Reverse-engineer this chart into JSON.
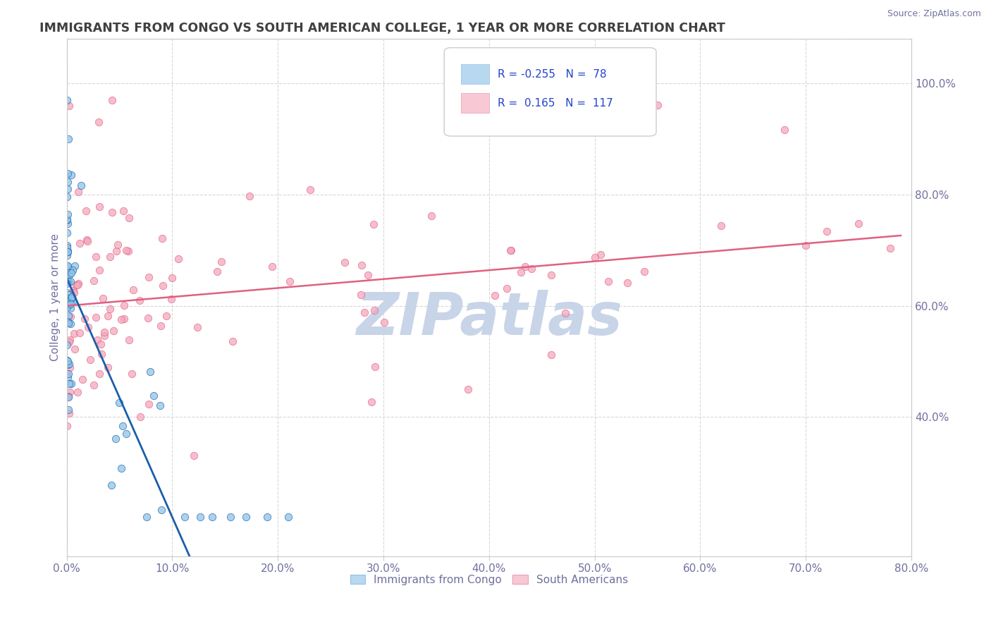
{
  "title": "IMMIGRANTS FROM CONGO VS SOUTH AMERICAN COLLEGE, 1 YEAR OR MORE CORRELATION CHART",
  "source_text": "Source: ZipAtlas.com",
  "ylabel": "College, 1 year or more",
  "xlim": [
    0.0,
    0.8
  ],
  "ylim": [
    0.15,
    1.08
  ],
  "xtick_labels": [
    "0.0%",
    "10.0%",
    "20.0%",
    "30.0%",
    "40.0%",
    "50.0%",
    "60.0%",
    "70.0%",
    "80.0%"
  ],
  "xtick_vals": [
    0.0,
    0.1,
    0.2,
    0.3,
    0.4,
    0.5,
    0.6,
    0.7,
    0.8
  ],
  "ytick_labels_right": [
    "40.0%",
    "60.0%",
    "80.0%",
    "100.0%"
  ],
  "ytick_vals_right": [
    0.4,
    0.6,
    0.8,
    1.0
  ],
  "r_congo": -0.255,
  "n_congo": 78,
  "r_south": 0.165,
  "n_south": 117,
  "color_congo": "#8ec4e8",
  "color_south": "#f4a8bc",
  "color_congo_line": "#1a5fa8",
  "color_south_line": "#e06080",
  "color_legend_box_congo": "#b8d8f0",
  "color_legend_box_south": "#f8c8d4",
  "watermark": "ZIPatlas",
  "watermark_color": "#c8d4e8",
  "background_color": "#ffffff",
  "grid_color": "#d8d8d8",
  "title_color": "#404040",
  "tick_color": "#7070a0",
  "source_color": "#7070a0"
}
